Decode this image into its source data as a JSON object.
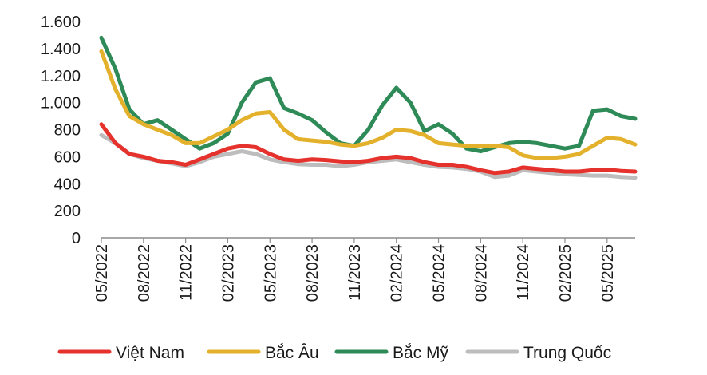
{
  "chart_data": {
    "type": "line",
    "title": "",
    "xlabel": "",
    "ylabel": "",
    "ylim": [
      0,
      1600
    ],
    "xlim": [
      "2022-05",
      "2025-07"
    ],
    "yticks": [
      0,
      200,
      400,
      600,
      800,
      1000,
      1200,
      1400,
      1600
    ],
    "ytick_labels": [
      "0",
      "200",
      "400",
      "600",
      "800",
      "1.000",
      "1.200",
      "1.400",
      "1.600"
    ],
    "xticks": [
      "2022-05",
      "2022-08",
      "2022-11",
      "2023-02",
      "2023-05",
      "2023-08",
      "2023-11",
      "2024-02",
      "2024-05",
      "2024-08",
      "2024-11",
      "2025-02",
      "2025-05"
    ],
    "xtick_labels": [
      "05/2022",
      "08/2022",
      "11/2022",
      "02/2023",
      "05/2023",
      "08/2023",
      "11/2023",
      "02/2024",
      "05/2024",
      "08/2024",
      "11/2024",
      "02/2025",
      "05/2025"
    ],
    "grid": false,
    "legend_position": "bottom",
    "x": [
      "2022-05",
      "2022-06",
      "2022-07",
      "2022-08",
      "2022-09",
      "2022-10",
      "2022-11",
      "2022-12",
      "2023-01",
      "2023-02",
      "2023-03",
      "2023-04",
      "2023-05",
      "2023-06",
      "2023-07",
      "2023-08",
      "2023-09",
      "2023-10",
      "2023-11",
      "2023-12",
      "2024-01",
      "2024-02",
      "2024-03",
      "2024-04",
      "2024-05",
      "2024-06",
      "2024-07",
      "2024-08",
      "2024-09",
      "2024-10",
      "2024-11",
      "2024-12",
      "2025-01",
      "2025-02",
      "2025-03",
      "2025-04",
      "2025-05",
      "2025-06",
      "2025-07"
    ],
    "series": [
      {
        "name": "Việt Nam",
        "color": "#e5322d",
        "values": [
          840,
          700,
          620,
          600,
          570,
          560,
          540,
          580,
          620,
          660,
          680,
          670,
          620,
          580,
          570,
          580,
          575,
          565,
          560,
          570,
          590,
          600,
          590,
          560,
          540,
          540,
          525,
          500,
          480,
          490,
          520,
          510,
          500,
          490,
          490,
          500,
          505,
          495,
          490
        ]
      },
      {
        "name": "Bắc Âu",
        "color": "#e4b12d",
        "values": [
          1380,
          1100,
          900,
          840,
          800,
          760,
          700,
          700,
          750,
          800,
          870,
          920,
          930,
          800,
          730,
          720,
          710,
          690,
          680,
          700,
          740,
          800,
          790,
          760,
          700,
          690,
          680,
          680,
          680,
          670,
          610,
          590,
          590,
          600,
          620,
          680,
          740,
          730,
          690
        ]
      },
      {
        "name": "Bắc Mỹ",
        "color": "#2e8b57",
        "values": [
          1480,
          1250,
          950,
          840,
          870,
          800,
          730,
          660,
          700,
          770,
          1000,
          1150,
          1180,
          960,
          920,
          870,
          780,
          700,
          680,
          800,
          980,
          1110,
          1000,
          790,
          840,
          770,
          660,
          640,
          670,
          700,
          710,
          700,
          680,
          660,
          680,
          940,
          950,
          900,
          880
        ]
      },
      {
        "name": "Trung Quốc",
        "color": "#bdbdbd",
        "values": [
          760,
          700,
          620,
          590,
          570,
          550,
          530,
          560,
          600,
          620,
          640,
          620,
          580,
          560,
          545,
          540,
          540,
          530,
          540,
          560,
          570,
          580,
          560,
          540,
          525,
          520,
          510,
          490,
          450,
          460,
          500,
          490,
          480,
          470,
          465,
          460,
          460,
          450,
          445
        ]
      }
    ]
  }
}
